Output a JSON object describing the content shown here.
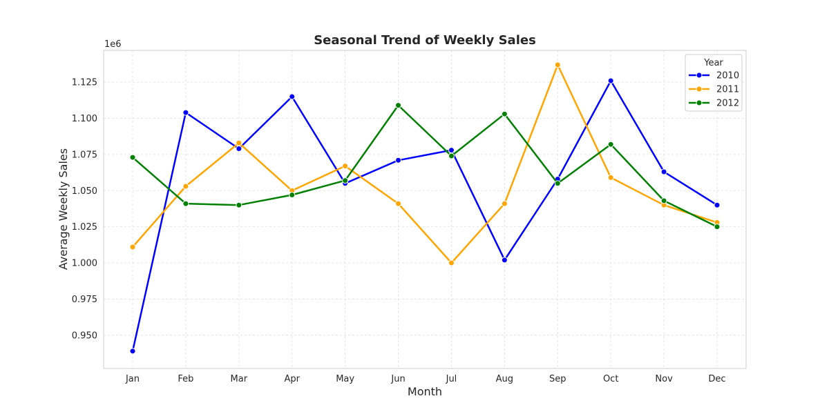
{
  "chart_data": {
    "type": "line",
    "title": "Seasonal Trend of Weekly Sales",
    "xlabel": "Month",
    "ylabel": "Average Weekly Sales",
    "y_offset_text": "1e6",
    "categories": [
      "Jan",
      "Feb",
      "Mar",
      "Apr",
      "May",
      "Jun",
      "Jul",
      "Aug",
      "Sep",
      "Oct",
      "Nov",
      "Dec"
    ],
    "yticks": [
      0.95,
      0.975,
      1.0,
      1.025,
      1.05,
      1.075,
      1.1,
      1.125
    ],
    "ytick_labels": [
      "0.950",
      "0.975",
      "1.000",
      "1.025",
      "1.050",
      "1.075",
      "1.100",
      "1.125"
    ],
    "ylim": [
      0.927,
      1.147
    ],
    "grid": true,
    "legend": {
      "title": "Year",
      "placement": "top-right"
    },
    "series": [
      {
        "name": "2010",
        "color": "#0000ff",
        "values": [
          0.939,
          1.104,
          1.079,
          1.115,
          1.055,
          1.071,
          1.078,
          1.002,
          1.058,
          1.126,
          1.063,
          1.04
        ]
      },
      {
        "name": "2011",
        "color": "#ffa500",
        "values": [
          1.011,
          1.053,
          1.083,
          1.05,
          1.067,
          1.041,
          1.0,
          1.041,
          1.137,
          1.059,
          1.04,
          1.028
        ]
      },
      {
        "name": "2012",
        "color": "#008000",
        "values": [
          1.073,
          1.041,
          1.04,
          1.047,
          1.057,
          1.109,
          1.074,
          1.103,
          1.055,
          1.082,
          1.043,
          1.025
        ]
      }
    ]
  }
}
